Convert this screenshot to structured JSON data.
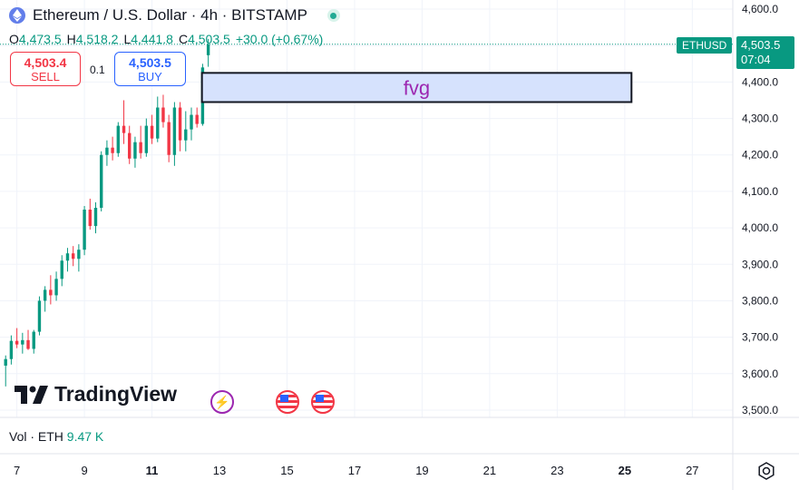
{
  "header": {
    "title": "Ethereum / U.S. Dollar · 4h · BITSTAMP",
    "ohlc": {
      "o_label": "O",
      "o": "4,473.5",
      "h_label": "H",
      "h": "4,518.2",
      "l_label": "L",
      "l": "4,441.8",
      "c_label": "C",
      "c": "4,503.5",
      "change": "+30.0 (+0.67%)"
    }
  },
  "trade": {
    "sell_price": "4,503.4",
    "sell_label": "SELL",
    "spread": "0.1",
    "buy_price": "4,503.5",
    "buy_label": "BUY"
  },
  "price_tag": {
    "symbol": "ETHUSD",
    "price": "4,503.5",
    "countdown": "07:04"
  },
  "brand": {
    "name": "TradingView"
  },
  "volume": {
    "label": "Vol · ETH",
    "value": "9.47 K"
  },
  "colors": {
    "up": "#089981",
    "down": "#f23645",
    "fvg_fill": "#d6e2fd",
    "fvg_text": "#9c27b0",
    "grid": "#f0f3fa"
  },
  "icons": [
    "ethereum-icon",
    "live-status-dot",
    "lightning-event-icon",
    "us-flag-event-icon",
    "settings-gear-icon"
  ],
  "chart_data": {
    "type": "candlestick",
    "title": "Ethereum / U.S. Dollar · 4h · BITSTAMP",
    "y_ticks": [
      "4,600.0",
      "4,500.0",
      "4,400.0",
      "4,300.0",
      "4,200.0",
      "4,100.0",
      "4,000.0",
      "3,900.0",
      "3,800.0",
      "3,700.0",
      "3,600.0",
      "3,500.0"
    ],
    "ylim": [
      3480,
      4625
    ],
    "x_ticks": [
      "7",
      "9",
      "11",
      "13",
      "15",
      "17",
      "19",
      "21",
      "23",
      "25",
      "27"
    ],
    "x_tick_values": [
      7,
      9,
      11,
      13,
      15,
      17,
      19,
      21,
      23,
      25,
      27
    ],
    "bold_x_ticks": [
      "11",
      "25"
    ],
    "xlim": [
      6.5,
      28.2
    ],
    "candles": [
      {
        "t": 6.667,
        "o": 3622,
        "h": 3650,
        "l": 3565,
        "c": 3640
      },
      {
        "t": 6.833,
        "o": 3640,
        "h": 3705,
        "l": 3625,
        "c": 3690
      },
      {
        "t": 7.0,
        "o": 3690,
        "h": 3725,
        "l": 3670,
        "c": 3680
      },
      {
        "t": 7.167,
        "o": 3680,
        "h": 3712,
        "l": 3655,
        "c": 3692
      },
      {
        "t": 7.333,
        "o": 3692,
        "h": 3720,
        "l": 3665,
        "c": 3668
      },
      {
        "t": 7.5,
        "o": 3668,
        "h": 3720,
        "l": 3655,
        "c": 3715
      },
      {
        "t": 7.667,
        "o": 3715,
        "h": 3812,
        "l": 3705,
        "c": 3800
      },
      {
        "t": 7.833,
        "o": 3800,
        "h": 3840,
        "l": 3770,
        "c": 3830
      },
      {
        "t": 8.0,
        "o": 3830,
        "h": 3870,
        "l": 3790,
        "c": 3815
      },
      {
        "t": 8.167,
        "o": 3815,
        "h": 3880,
        "l": 3800,
        "c": 3860
      },
      {
        "t": 8.333,
        "o": 3860,
        "h": 3925,
        "l": 3840,
        "c": 3910
      },
      {
        "t": 8.5,
        "o": 3910,
        "h": 3945,
        "l": 3880,
        "c": 3930
      },
      {
        "t": 8.667,
        "o": 3930,
        "h": 3950,
        "l": 3895,
        "c": 3915
      },
      {
        "t": 8.833,
        "o": 3915,
        "h": 3955,
        "l": 3880,
        "c": 3940
      },
      {
        "t": 9.0,
        "o": 3940,
        "h": 4060,
        "l": 3925,
        "c": 4050
      },
      {
        "t": 9.167,
        "o": 4050,
        "h": 4080,
        "l": 3995,
        "c": 4005
      },
      {
        "t": 9.333,
        "o": 4005,
        "h": 4070,
        "l": 3985,
        "c": 4055
      },
      {
        "t": 9.5,
        "o": 4055,
        "h": 4210,
        "l": 4045,
        "c": 4200
      },
      {
        "t": 9.667,
        "o": 4200,
        "h": 4240,
        "l": 4170,
        "c": 4220
      },
      {
        "t": 9.833,
        "o": 4220,
        "h": 4250,
        "l": 4185,
        "c": 4205
      },
      {
        "t": 10.0,
        "o": 4205,
        "h": 4290,
        "l": 4195,
        "c": 4280
      },
      {
        "t": 10.167,
        "o": 4280,
        "h": 4350,
        "l": 4230,
        "c": 4260
      },
      {
        "t": 10.333,
        "o": 4260,
        "h": 4280,
        "l": 4175,
        "c": 4190
      },
      {
        "t": 10.5,
        "o": 4190,
        "h": 4250,
        "l": 4165,
        "c": 4235
      },
      {
        "t": 10.667,
        "o": 4235,
        "h": 4280,
        "l": 4190,
        "c": 4205
      },
      {
        "t": 10.833,
        "o": 4205,
        "h": 4300,
        "l": 4195,
        "c": 4280
      },
      {
        "t": 11.0,
        "o": 4280,
        "h": 4310,
        "l": 4230,
        "c": 4245
      },
      {
        "t": 11.167,
        "o": 4245,
        "h": 4360,
        "l": 4235,
        "c": 4330
      },
      {
        "t": 11.333,
        "o": 4330,
        "h": 4365,
        "l": 4275,
        "c": 4290
      },
      {
        "t": 11.5,
        "o": 4290,
        "h": 4310,
        "l": 4180,
        "c": 4200
      },
      {
        "t": 11.667,
        "o": 4200,
        "h": 4345,
        "l": 4170,
        "c": 4330
      },
      {
        "t": 11.833,
        "o": 4330,
        "h": 4345,
        "l": 4210,
        "c": 4240
      },
      {
        "t": 12.0,
        "o": 4240,
        "h": 4320,
        "l": 4210,
        "c": 4270
      },
      {
        "t": 12.167,
        "o": 4270,
        "h": 4330,
        "l": 4240,
        "c": 4310
      },
      {
        "t": 12.333,
        "o": 4310,
        "h": 4330,
        "l": 4275,
        "c": 4285
      },
      {
        "t": 12.5,
        "o": 4285,
        "h": 4450,
        "l": 4280,
        "c": 4440
      },
      {
        "t": 12.667,
        "o": 4473.5,
        "h": 4518.2,
        "l": 4441.8,
        "c": 4503.5
      }
    ],
    "fvg_zone": {
      "label": "fvg",
      "y_top": 4425,
      "y_bottom": 4345,
      "x_start": 12.48,
      "x_end": 25.2
    },
    "last_price": 4503.5
  }
}
